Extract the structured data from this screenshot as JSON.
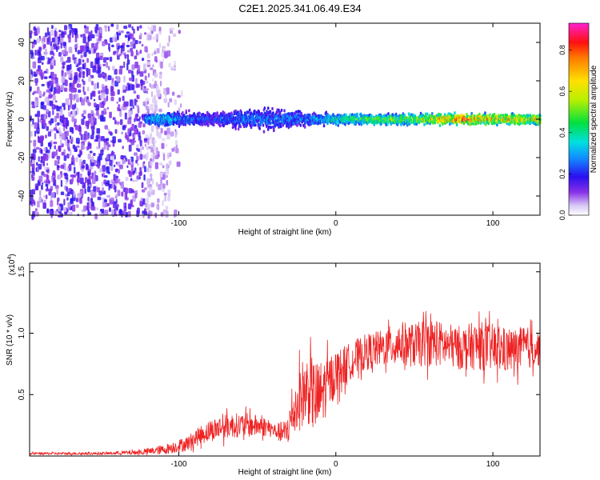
{
  "title": "C2E1.2025.341.06.49.E34",
  "chart_data": [
    {
      "type": "heatmap",
      "xlabel": "Height of straight line (km)",
      "ylabel": "Frequency (Hz)",
      "xlim": [
        -195,
        130
      ],
      "ylim": [
        -50,
        50
      ],
      "xticks": [
        -100,
        0,
        100
      ],
      "yticks": [
        -40,
        -20,
        0,
        20,
        40
      ],
      "colorbar": {
        "label": "Normalized spectral amplitude",
        "range": [
          0.0,
          0.93
        ],
        "ticks": [
          0.0,
          0.2,
          0.4,
          0.6,
          0.8
        ],
        "tick_labels": [
          "0.0",
          "0.2",
          "0.4",
          "0.6",
          "0.8"
        ]
      },
      "band": [
        {
          "x": -122,
          "amp": 0.35,
          "halfwidth_hz": 3
        },
        {
          "x": -110,
          "amp": 0.4,
          "halfwidth_hz": 4
        },
        {
          "x": -100,
          "amp": 0.3,
          "halfwidth_hz": 4
        },
        {
          "x": -80,
          "amp": 0.25,
          "halfwidth_hz": 4
        },
        {
          "x": -60,
          "amp": 0.3,
          "halfwidth_hz": 5
        },
        {
          "x": -40,
          "amp": 0.3,
          "halfwidth_hz": 6
        },
        {
          "x": -20,
          "amp": 0.3,
          "halfwidth_hz": 4
        },
        {
          "x": 0,
          "amp": 0.45,
          "halfwidth_hz": 3
        },
        {
          "x": 20,
          "amp": 0.55,
          "halfwidth_hz": 3
        },
        {
          "x": 40,
          "amp": 0.55,
          "halfwidth_hz": 3
        },
        {
          "x": 60,
          "amp": 0.7,
          "halfwidth_hz": 3
        },
        {
          "x": 80,
          "amp": 0.85,
          "halfwidth_hz": 3
        },
        {
          "x": 100,
          "amp": 0.75,
          "halfwidth_hz": 3
        },
        {
          "x": 130,
          "amp": 0.7,
          "halfwidth_hz": 3
        }
      ],
      "noise_region": {
        "x_from": -195,
        "x_to": -97,
        "dense_until": -122
      }
    },
    {
      "type": "line",
      "xlabel": "Height of straight line (km)",
      "ylabel": "SNR (10 * v/v)",
      "scale_label": "(x10",
      "scale_exp": "4",
      "xlim": [
        -195,
        130
      ],
      "ylim": [
        0,
        1.57
      ],
      "xticks": [
        -100,
        0,
        100
      ],
      "yticks": [
        0.5,
        1.0,
        1.5
      ],
      "ytick_labels": [
        "0.5",
        "1.0",
        "1.5"
      ],
      "color": "#ee2222",
      "series": [
        {
          "x": [
            -195,
            -150,
            -125,
            -110,
            -95,
            -85,
            -75,
            -65,
            -55,
            -45,
            -38,
            -32,
            -27,
            -22,
            -17,
            -12,
            -7,
            0,
            10,
            20,
            30,
            40,
            50,
            60,
            70,
            80,
            90,
            100,
            110,
            120,
            130
          ],
          "y": [
            0.02,
            0.02,
            0.03,
            0.05,
            0.1,
            0.18,
            0.23,
            0.25,
            0.25,
            0.24,
            0.2,
            0.18,
            0.35,
            0.5,
            0.55,
            0.45,
            0.55,
            0.68,
            0.78,
            0.85,
            0.88,
            0.92,
            0.9,
            0.93,
            0.9,
            0.88,
            0.9,
            0.88,
            0.85,
            0.88,
            0.88
          ],
          "amplitude": [
            0.01,
            0.01,
            0.02,
            0.04,
            0.06,
            0.08,
            0.1,
            0.1,
            0.1,
            0.08,
            0.06,
            0.12,
            0.2,
            0.28,
            0.3,
            0.32,
            0.25,
            0.18,
            0.15,
            0.15,
            0.15,
            0.18,
            0.18,
            0.2,
            0.18,
            0.18,
            0.2,
            0.2,
            0.18,
            0.18,
            0.15
          ]
        }
      ]
    }
  ]
}
